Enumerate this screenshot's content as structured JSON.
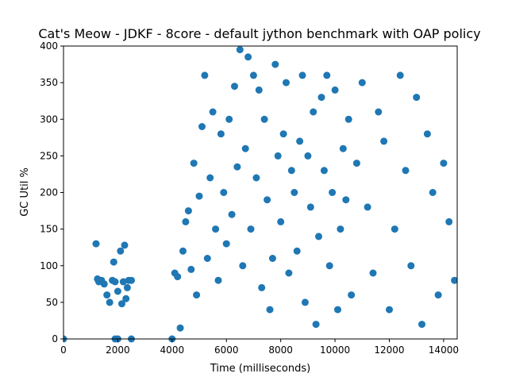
{
  "chart_data": {
    "type": "scatter",
    "title": "Cat's Meow - JDKF - 8core -  default jython benchmark with OAP policy",
    "xlabel": "Time (milliseconds)",
    "ylabel": "GC Util %",
    "xlim": [
      0,
      14500
    ],
    "ylim": [
      0,
      400
    ],
    "xticks": [
      0,
      2000,
      4000,
      6000,
      8000,
      10000,
      12000,
      14000
    ],
    "yticks": [
      0,
      50,
      100,
      150,
      200,
      250,
      300,
      350,
      400
    ],
    "grid": false,
    "legend": "none",
    "marker_color": "#1f77b4",
    "series": [
      {
        "points": [
          [
            0,
            0
          ],
          [
            1200,
            130
          ],
          [
            1250,
            82
          ],
          [
            1300,
            78
          ],
          [
            1400,
            80
          ],
          [
            1500,
            75
          ],
          [
            1600,
            60
          ],
          [
            1700,
            50
          ],
          [
            1800,
            80
          ],
          [
            1850,
            105
          ],
          [
            1900,
            78
          ],
          [
            2000,
            65
          ],
          [
            2100,
            120
          ],
          [
            2150,
            48
          ],
          [
            2200,
            78
          ],
          [
            2250,
            128
          ],
          [
            2300,
            55
          ],
          [
            2350,
            70
          ],
          [
            2400,
            80
          ],
          [
            2500,
            80
          ],
          [
            1900,
            0
          ],
          [
            2000,
            0
          ],
          [
            2500,
            0
          ],
          [
            4000,
            0
          ],
          [
            4100,
            90
          ],
          [
            4200,
            85
          ],
          [
            4300,
            15
          ],
          [
            4400,
            120
          ],
          [
            4500,
            160
          ],
          [
            4600,
            175
          ],
          [
            4700,
            95
          ],
          [
            4800,
            240
          ],
          [
            4900,
            60
          ],
          [
            5000,
            195
          ],
          [
            5100,
            290
          ],
          [
            5200,
            360
          ],
          [
            5300,
            110
          ],
          [
            5400,
            220
          ],
          [
            5500,
            310
          ],
          [
            5600,
            150
          ],
          [
            5700,
            80
          ],
          [
            5800,
            280
          ],
          [
            5900,
            200
          ],
          [
            6000,
            130
          ],
          [
            6100,
            300
          ],
          [
            6200,
            170
          ],
          [
            6300,
            345
          ],
          [
            6400,
            235
          ],
          [
            6500,
            395
          ],
          [
            6600,
            100
          ],
          [
            6700,
            260
          ],
          [
            6800,
            385
          ],
          [
            6900,
            150
          ],
          [
            7000,
            360
          ],
          [
            7100,
            220
          ],
          [
            7200,
            340
          ],
          [
            7300,
            70
          ],
          [
            7400,
            300
          ],
          [
            7500,
            190
          ],
          [
            7600,
            40
          ],
          [
            7700,
            110
          ],
          [
            7800,
            375
          ],
          [
            7900,
            250
          ],
          [
            8000,
            160
          ],
          [
            8100,
            280
          ],
          [
            8200,
            350
          ],
          [
            8300,
            90
          ],
          [
            8400,
            230
          ],
          [
            8500,
            200
          ],
          [
            8600,
            120
          ],
          [
            8700,
            270
          ],
          [
            8800,
            360
          ],
          [
            8900,
            50
          ],
          [
            9000,
            250
          ],
          [
            9100,
            180
          ],
          [
            9200,
            310
          ],
          [
            9300,
            20
          ],
          [
            9400,
            140
          ],
          [
            9500,
            330
          ],
          [
            9600,
            230
          ],
          [
            9700,
            360
          ],
          [
            9800,
            100
          ],
          [
            9900,
            200
          ],
          [
            10000,
            340
          ],
          [
            10100,
            40
          ],
          [
            10200,
            150
          ],
          [
            10300,
            260
          ],
          [
            10400,
            190
          ],
          [
            10500,
            300
          ],
          [
            10600,
            60
          ],
          [
            10800,
            240
          ],
          [
            11000,
            350
          ],
          [
            11200,
            180
          ],
          [
            11400,
            90
          ],
          [
            11600,
            310
          ],
          [
            11800,
            270
          ],
          [
            12000,
            40
          ],
          [
            12200,
            150
          ],
          [
            12400,
            360
          ],
          [
            12600,
            230
          ],
          [
            12800,
            100
          ],
          [
            13000,
            330
          ],
          [
            13200,
            20
          ],
          [
            13400,
            280
          ],
          [
            13600,
            200
          ],
          [
            13800,
            60
          ],
          [
            14000,
            240
          ],
          [
            14200,
            160
          ],
          [
            14400,
            80
          ]
        ]
      }
    ]
  }
}
